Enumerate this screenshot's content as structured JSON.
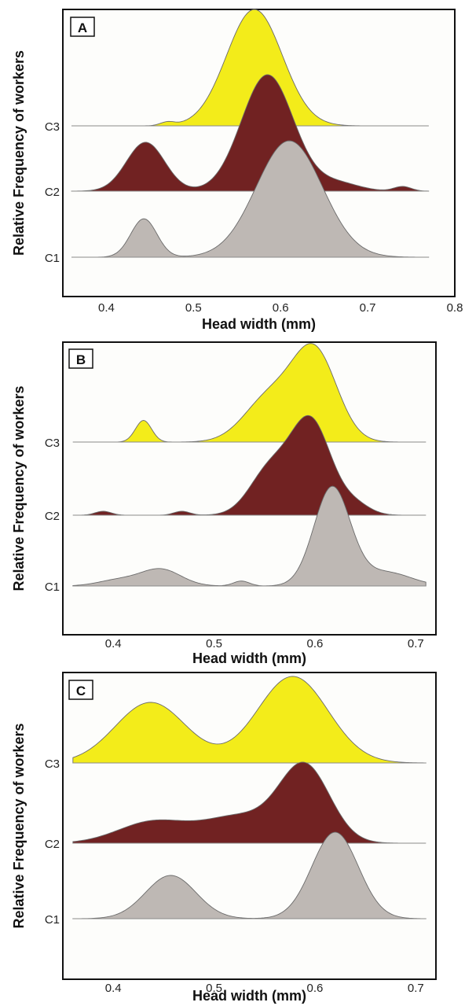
{
  "figure": {
    "y_axis_label": "Relative Frequency of workers",
    "x_axis_label": "Head width (mm)"
  },
  "chart_data": [
    {
      "type": "area",
      "panel": "A",
      "xlabel": "Head width (mm)",
      "ylabel": "Relative Frequency of workers",
      "xlim": [
        0.35,
        0.8
      ],
      "xticks": [
        "0.4",
        "0.5",
        "0.6",
        "0.7",
        "0.8"
      ],
      "x_data_range": [
        0.36,
        0.77
      ],
      "series": [
        {
          "name": "C3",
          "color": "#f3ec1a",
          "peaks": [
            {
              "mu": 0.47,
              "sigma": 0.008,
              "h": 0.03
            },
            {
              "mu": 0.57,
              "sigma": 0.032,
              "h": 1.0
            }
          ]
        },
        {
          "name": "C2",
          "color": "#712222",
          "peaks": [
            {
              "mu": 0.445,
              "sigma": 0.022,
              "h": 0.42
            },
            {
              "mu": 0.585,
              "sigma": 0.03,
              "h": 1.0
            },
            {
              "mu": 0.665,
              "sigma": 0.025,
              "h": 0.07
            },
            {
              "mu": 0.74,
              "sigma": 0.01,
              "h": 0.04
            }
          ]
        },
        {
          "name": "C1",
          "color": "#beb8b4",
          "peaks": [
            {
              "mu": 0.443,
              "sigma": 0.015,
              "h": 0.33
            },
            {
              "mu": 0.61,
              "sigma": 0.038,
              "h": 1.0
            }
          ]
        }
      ]
    },
    {
      "type": "area",
      "panel": "B",
      "xlabel": "Head width (mm)",
      "ylabel": "Relative Frequency of workers",
      "xlim": [
        0.35,
        0.72
      ],
      "xticks": [
        "0.4",
        "0.5",
        "0.6",
        "0.7"
      ],
      "x_data_range": [
        0.36,
        0.71
      ],
      "series": [
        {
          "name": "C3",
          "color": "#f3ec1a",
          "peaks": [
            {
              "mu": 0.43,
              "sigma": 0.008,
              "h": 0.22
            },
            {
              "mu": 0.555,
              "sigma": 0.025,
              "h": 0.45
            },
            {
              "mu": 0.6,
              "sigma": 0.022,
              "h": 0.9
            }
          ]
        },
        {
          "name": "C2",
          "color": "#712222",
          "peaks": [
            {
              "mu": 0.39,
              "sigma": 0.008,
              "h": 0.04
            },
            {
              "mu": 0.468,
              "sigma": 0.008,
              "h": 0.04
            },
            {
              "mu": 0.555,
              "sigma": 0.02,
              "h": 0.45
            },
            {
              "mu": 0.596,
              "sigma": 0.02,
              "h": 0.95
            },
            {
              "mu": 0.64,
              "sigma": 0.015,
              "h": 0.1
            }
          ]
        },
        {
          "name": "C1",
          "color": "#beb8b4",
          "peaks": [
            {
              "mu": 0.405,
              "sigma": 0.02,
              "h": 0.06
            },
            {
              "mu": 0.447,
              "sigma": 0.02,
              "h": 0.17
            },
            {
              "mu": 0.527,
              "sigma": 0.008,
              "h": 0.05
            },
            {
              "mu": 0.617,
              "sigma": 0.018,
              "h": 1.0
            },
            {
              "mu": 0.67,
              "sigma": 0.025,
              "h": 0.14
            }
          ]
        }
      ]
    },
    {
      "type": "area",
      "panel": "C",
      "xlabel": "Head width (mm)",
      "ylabel": "Relative Frequency of workers",
      "xlim": [
        0.35,
        0.72
      ],
      "xticks": [
        "0.4",
        "0.5",
        "0.6",
        "0.7"
      ],
      "x_data_range": [
        0.36,
        0.71
      ],
      "series": [
        {
          "name": "C3",
          "color": "#f3ec1a",
          "peaks": [
            {
              "mu": 0.437,
              "sigma": 0.035,
              "h": 0.7
            },
            {
              "mu": 0.578,
              "sigma": 0.035,
              "h": 1.0
            }
          ]
        },
        {
          "name": "C2",
          "color": "#712222",
          "peaks": [
            {
              "mu": 0.44,
              "sigma": 0.035,
              "h": 0.25
            },
            {
              "mu": 0.525,
              "sigma": 0.035,
              "h": 0.3
            },
            {
              "mu": 0.59,
              "sigma": 0.025,
              "h": 0.88
            }
          ]
        },
        {
          "name": "C1",
          "color": "#beb8b4",
          "peaks": [
            {
              "mu": 0.457,
              "sigma": 0.025,
              "h": 0.5
            },
            {
              "mu": 0.62,
              "sigma": 0.023,
              "h": 1.0
            }
          ]
        }
      ]
    }
  ]
}
